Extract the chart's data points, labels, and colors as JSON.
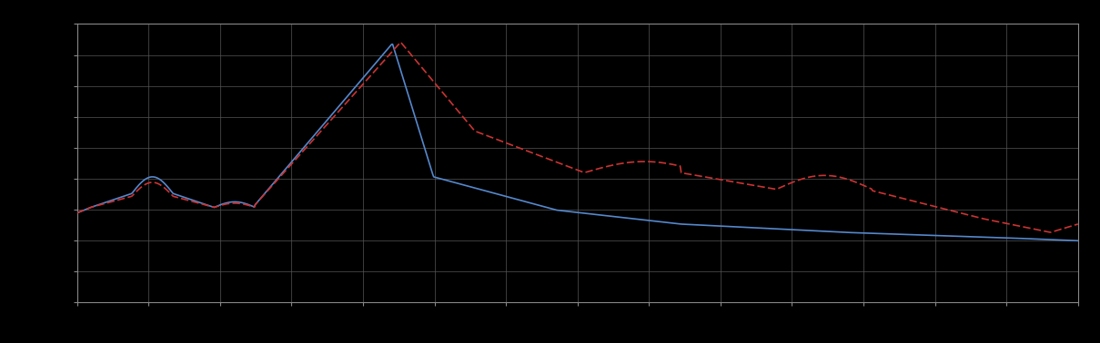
{
  "background_color": "#000000",
  "plot_bg_color": "#000000",
  "grid_color": "#555555",
  "line1_color": "#5588cc",
  "line2_color": "#cc3333",
  "line1_style": "solid",
  "line_width": 1.2,
  "x_min": 0,
  "x_max": 365,
  "y_min": 0,
  "y_max": 10,
  "grid_x_interval": 26.07,
  "grid_y_interval": 1.111
}
